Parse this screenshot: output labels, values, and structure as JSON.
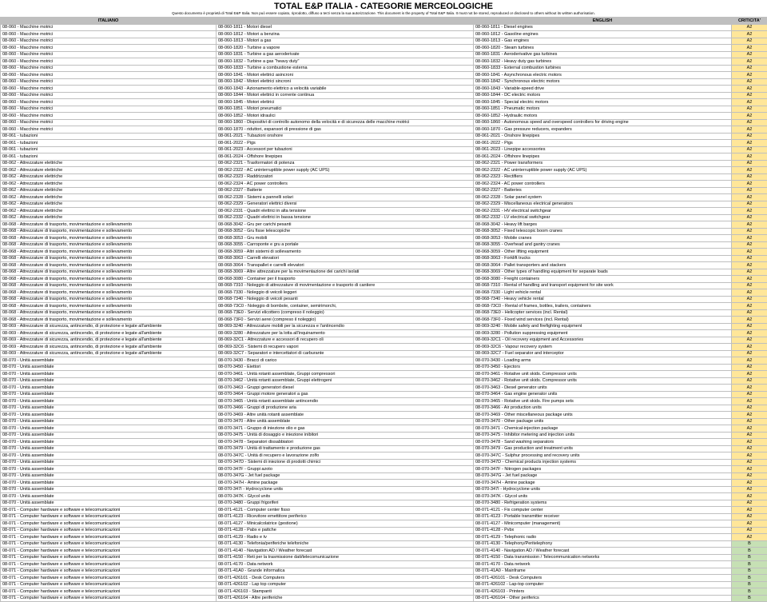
{
  "title": "TOTAL E&P ITALIA - CATEGORIE MERCEOLOGICHE",
  "subtitle": "Questo documento è proprietà di Total E&P Italia. Non può essere copiato, riprodotto, diffuso a terzi senza la sua autorizzazione.  This document is the property of Total E&P Italia. It must not be stored, reproduced or disclosed to others without its written authorisation.",
  "columns": {
    "c1": "ITALIANO",
    "c2": "",
    "c3": "ENGLISH",
    "c4": "CRITICITA'"
  },
  "colors": {
    "a2": "#ffe699",
    "b": "#c6e0b4",
    "header": "#bfbfbf",
    "border": "#bfbfbf"
  },
  "rows": [
    {
      "it": "08-060 - Macchine motrici",
      "code": "08-060-1811 - Motori diesel",
      "en": "08-060-1811 - Diesel engines",
      "crit": "A2"
    },
    {
      "it": "08-060 - Macchine motrici",
      "code": "08-060-1812 - Motori a benzina",
      "en": "08-060-1812 - Gasoline engines",
      "crit": "A2"
    },
    {
      "it": "08-060 - Macchine motrici",
      "code": "08-060-1813 - Motori a gas",
      "en": "08-060-1813 - Gas engines",
      "crit": "A2"
    },
    {
      "it": "08-060 - Macchine motrici",
      "code": "08-060-1820 - Turbine a vapore",
      "en": "08-060-1820 - Steam turbines",
      "crit": "A2"
    },
    {
      "it": "08-060 - Macchine motrici",
      "code": "08-060-1831 - Turbine a gas aeroderivate",
      "en": "08-060-1831 - Aeroderivative gas turbines",
      "crit": "A2"
    },
    {
      "it": "08-060 - Macchine motrici",
      "code": "08-060-1832 - Turbine a gas \"heavy duty\"",
      "en": "08-060-1832 - Heavy duty gas turbines",
      "crit": "A2"
    },
    {
      "it": "08-060 - Macchine motrici",
      "code": "08-060-1833 - Turbine a combustione esterna",
      "en": "08-060-1833 - External combustion turbines",
      "crit": "A2"
    },
    {
      "it": "08-060 - Macchine motrici",
      "code": "08-060-1841 - Motori elettrici asincroni",
      "en": "08-060-1841 - Asynchronous electric motors",
      "crit": "A2"
    },
    {
      "it": "08-060 - Macchine motrici",
      "code": "08-060-1842 - Motori elettrici sincroni",
      "en": "08-060-1842 - Synchronous electric motors",
      "crit": "A2"
    },
    {
      "it": "08-060 - Macchine motrici",
      "code": "08-060-1843 - Azionamento elettrico a velocità variabile",
      "en": "08-060-1843 - Variable-speed drive",
      "crit": "A2"
    },
    {
      "it": "08-060 - Macchine motrici",
      "code": "08-060-1844 - Motori elettrici in corrente continua",
      "en": "08-060-1844 - DC electric motors",
      "crit": "A2"
    },
    {
      "it": "08-060 - Macchine motrici",
      "code": "08-060-1845 - Motori elettrici",
      "en": "08-060-1845 - Special electric motors",
      "crit": "A2"
    },
    {
      "it": "08-060 - Macchine motrici",
      "code": "08-060-1851 - Motori pneumatici",
      "en": "08-060-1851 - Pneumatic motors",
      "crit": "A2"
    },
    {
      "it": "08-060 - Macchine motrici",
      "code": "08-060-1852 - Motori idraulici",
      "en": "08-060-1852 - Hydraulic motors",
      "crit": "A2"
    },
    {
      "it": "08-060 - Macchine motrici",
      "code": "08-060-1860 - Dispositivi di controllo autonomo della velocità e di sicurezza delle macchine motrici",
      "en": "08-060-1860 - Autonomous speed and overspeed controllers for driving engine",
      "crit": "A2"
    },
    {
      "it": "08-060 - Macchine motrici",
      "code": "08-060-1870 - riduttori, espansori di pressione di gas",
      "en": "08-060-1870 - Gas pressure reducers, expanders",
      "crit": "A2"
    },
    {
      "it": "08-061 - tubazioni",
      "code": "08-061-2021 - Tubazioni onshore",
      "en": "08-061-2021 - Onshore linepipes",
      "crit": "A2"
    },
    {
      "it": "08-061 - tubazioni",
      "code": "08-061-2022 - Pigs",
      "en": "08-061-2022 - Pigs",
      "crit": "A2"
    },
    {
      "it": "08-061 - tubazioni",
      "code": "08-061-2023 - Accessori per tubazioni",
      "en": "08-061-2023 - Linepipe accessories",
      "crit": "A2"
    },
    {
      "it": "08-061 - tubazioni",
      "code": "08-061-2024 - Offshore linepipes",
      "en": "08-061-2024 - Offshore linepipes",
      "crit": "A2"
    },
    {
      "it": "08-062 - Attrezzature elettriche",
      "code": "08-062-2321 - Trasformatori di potenza",
      "en": "08-062-2321 - Power transformers",
      "crit": "A2"
    },
    {
      "it": "08-062 - Attrezzature elettriche",
      "code": "08-062-2322 - AC uninterruptible power supply (AC UPS)",
      "en": "08-062-2322 - AC uninterruptible power supply (AC UPS)",
      "crit": "A2"
    },
    {
      "it": "08-062 - Attrezzature elettriche",
      "code": "08-062-2323 - Raddrizzatori",
      "en": "08-062-2323 - Rectifiers",
      "crit": "A2"
    },
    {
      "it": "08-062 - Attrezzature elettriche",
      "code": "08-062-2324 - AC power controllers",
      "en": "08-062-2324 - AC power controllers",
      "crit": "A2"
    },
    {
      "it": "08-062 - Attrezzature elettriche",
      "code": "08-062-2327 - Batterie",
      "en": "08-062-2327 - Batteries",
      "crit": "A2"
    },
    {
      "it": "08-062 - Attrezzature elettriche",
      "code": "08-062-2328 - Sistemi a pannelli solari",
      "en": "08-062-2328 - Solar panel system",
      "crit": "A2"
    },
    {
      "it": "08-062 - Attrezzature elettriche",
      "code": "08-062-2329 - Generatori elettrici diversi",
      "en": "08-062-2329 - Miscellaneous electrical generators",
      "crit": "A2"
    },
    {
      "it": "08-062 - Attrezzature elettriche",
      "code": "08-062-2331 - Quadri elettrici in alta tensione",
      "en": "08-062-2331 - HV electrical switchgear",
      "crit": "A2"
    },
    {
      "it": "08-062 - Attrezzature elettriche",
      "code": "08-062-2332 - Quadri elettrici in bassa tensione",
      "en": "08-062-2332 - LV electrical switchgear",
      "crit": "A2"
    },
    {
      "it": "08-068 - Attrezzature di trasporto, movimentazione e sollevamento",
      "code": "08-068-3042 - Gru per carichi pesanti",
      "en": "08-068-3042 - Heavy lift barges",
      "crit": "A2"
    },
    {
      "it": "08-068 - Attrezzature di trasporto, movimentazione e sollevamento",
      "code": "08-068-3052 - Gru fisse telescopiche",
      "en": "08-068-3052 - Fixed telescopic boom cranes",
      "crit": "A2"
    },
    {
      "it": "08-068 - Attrezzature di trasporto, movimentazione e sollevamento",
      "code": "08-068-3053 - Gru mobili",
      "en": "08-068-3053 - Mobile cranes",
      "crit": "A2"
    },
    {
      "it": "08-068 - Attrezzature di trasporto, movimentazione e sollevamento",
      "code": "08-068-3055 - Carroponte e gru a portale",
      "en": "08-068-3055 - Overhead and gantry cranes",
      "crit": "A2"
    },
    {
      "it": "08-068 - Attrezzature di trasporto, movimentazione e sollevamento",
      "code": "08-068-3059 - Altri sistemi di sollevamento",
      "en": "08-068-3059 - Other lifting equipment",
      "crit": "A2"
    },
    {
      "it": "08-068 - Attrezzature di trasporto, movimentazione e sollevamento",
      "code": "08-068-3063 - Carrelli elevatori",
      "en": "08-068-3063 - Forklift trucks",
      "crit": "A2"
    },
    {
      "it": "08-068 - Attrezzature di trasporto, movimentazione e sollevamento",
      "code": "08-068-3064 - Transpallet e carrelli elevatori",
      "en": "08-068-3064 - Pallet transporters and stackers",
      "crit": "A2"
    },
    {
      "it": "08-068 - Attrezzature di trasporto, movimentazione e sollevamento",
      "code": "08-068-3069 - Altre attrezzature per la movimentazione dei carichi isolati",
      "en": "08-068-3069 - Other types of handling equipment for separate loads",
      "crit": "A2"
    },
    {
      "it": "08-068 - Attrezzature di trasporto, movimentazione e sollevamento",
      "code": "08-068-3080 - Container per il trasporto",
      "en": "08-068-3080 - Freight containers",
      "crit": "A2"
    },
    {
      "it": "08-068 - Attrezzature di trasporto, movimentazione e sollevamento",
      "code": "08-068-7310 - Noleggio di attrezzature di movimentazione e trasporto di cantiere",
      "en": "08-068-7310 - Rental of handling and transport equipment for site work",
      "crit": "A2"
    },
    {
      "it": "08-068 - Attrezzature di trasporto, movimentazione e sollevamento",
      "code": "08-068-7330 - Noleggio di veicoli leggeri",
      "en": "08-068-7330 - Light vehicle rental",
      "crit": "A2"
    },
    {
      "it": "08-068 - Attrezzature di trasporto, movimentazione e sollevamento",
      "code": "08-068-7340 - Noleggio di veicoli pesanti",
      "en": "08-068-7340 - Heavy vehicle rental",
      "crit": "A2"
    },
    {
      "it": "08-068 - Attrezzature di trasporto, movimentazione e sollevamento",
      "code": "08-068-73C0 - Noleggio di bombole, container, semirimorchi,",
      "en": "08-068-73C0 - Rental of frames, bottles, trailers, containers",
      "crit": "A2"
    },
    {
      "it": "08-068 - Attrezzature di trasporto, movimentazione e sollevamento",
      "code": "08-068-73E0 - Servizi elicottero (compreso il noleggio)",
      "en": "08-068-73E0 - Helicopter services (incl. Rental)",
      "crit": "A2"
    },
    {
      "it": "08-068 - Attrezzature di trasporto, movimentazione e sollevamento",
      "code": "08-068-73F0 - Servizi aerei (compreso il noleggio)",
      "en": "08-068-73F0 - Fixed wind services (incl. Rental)",
      "crit": "A2"
    },
    {
      "it": "08-069 - Attrezzature di sicurezza, antincendio, di protezione e legate all'ambiente",
      "code": "08-069-3240 - Attrezzature mobili per la sicurezza e l'antincendio",
      "en": "08-069-3240 - Mobile safety and firefighting equipment",
      "crit": "A2"
    },
    {
      "it": "08-069 - Attrezzature di sicurezza, antincendio, di protezione e legate all'ambiente",
      "code": "08-069-3280 - Attrezzature per la lotta all'inquinamento",
      "en": "08-069-3280 - Pollution suppressing equipment",
      "crit": "A2"
    },
    {
      "it": "08-069 - Attrezzature di sicurezza, antincendio, di protezione e legate all'ambiente",
      "code": "08-069-32C1 - Attrezzature e accessori di recupero oli",
      "en": "08-069-32C1 - Oil recovery equipment and Accessories",
      "crit": "A2"
    },
    {
      "it": "08-069 - Attrezzature di sicurezza, antincendio, di protezione e legate all'ambiente",
      "code": "08-069-32C6 - Sistemi di recupero vapori",
      "en": "08-069-32C6 - Vapour recovery system",
      "crit": "A2"
    },
    {
      "it": "08-069 - Attrezzature di sicurezza, antincendio, di protezione e legate all'ambiente",
      "code": "08-069-32C7 - Separatori e intercettatori di carburante",
      "en": "08-069-32C7 - Fuel separator and interceptor",
      "crit": "A2"
    },
    {
      "it": "08-070 - Unità assemblate",
      "code": "08-070-3430 - Bracci di carico",
      "en": "08-070-3430 - Loading arms",
      "crit": "A2"
    },
    {
      "it": "08-070 - Unità assemblate",
      "code": "08-070-3450 - Eiettori",
      "en": "08-070-3450 - Ejectors",
      "crit": "A2"
    },
    {
      "it": "08-070 - Unità assemblate",
      "code": "08-070-3461 - Unità rotanti assemblate, Gruppi compressori",
      "en": "08-070-3461 - Rotative unit skids. Compressor units",
      "crit": "A2"
    },
    {
      "it": "08-070 - Unità assemblate",
      "code": "08-070-3462 - Unità rotanti assemblate, Gruppi elettrogeni",
      "en": "08-070-3462 - Rotative unit skids. Compressor units",
      "crit": "A2"
    },
    {
      "it": "08-070 - Unità assemblate",
      "code": "08-070-3463 - Gruppi generatori diesel",
      "en": "08-070-3463 - Diesel generator units",
      "crit": "A2"
    },
    {
      "it": "08-070 - Unità assemblate",
      "code": "08-070-3464 - Gruppi motore generatori a gas",
      "en": "08-070-3464 - Gas engine generator units",
      "crit": "A2"
    },
    {
      "it": "08-070 - Unità assemblate",
      "code": "08-070-3465 - Unità rotanti assemblate antincendio",
      "en": "08-070-3465 - Rotative unit skids. Fire pumps sets",
      "crit": "A2"
    },
    {
      "it": "08-070 - Unità assemblate",
      "code": "08-070-3466 - Gruppi di produzione aria",
      "en": "08-070-3466 - Air production units",
      "crit": "A2"
    },
    {
      "it": "08-070 - Unità assemblate",
      "code": "08-070-3469 - Altre unità rotanti assemblate",
      "en": "08-070-3469 - Other miscellaneous package units",
      "crit": "A2"
    },
    {
      "it": "08-070 - Unità assemblate",
      "code": "08-070-3470 - Altre unità assemblate",
      "en": "08-070-3470 - Other package units",
      "crit": "A2"
    },
    {
      "it": "08-070 - Unità assemblate",
      "code": "08-070-3471 - Gruppo di iniezione olio e gas",
      "en": "08-070-3471 - Chemical-injection package",
      "crit": "A2"
    },
    {
      "it": "08-070 - Unità assemblate",
      "code": "08-070-3475 - Unità di dosaggio e iniezione inibitori",
      "en": "08-070-3475 - Inhibitor metering and injection units",
      "crit": "A2"
    },
    {
      "it": "08-070 - Unità assemblate",
      "code": "08-070-3478 - Separatori dissabbiatori",
      "en": "08-070-3478 - Sand washing separators",
      "crit": "A2"
    },
    {
      "it": "08-070 - Unità assemblate",
      "code": "08-070-3479 - Unità di trattamento e produzione gas",
      "en": "08-070-3479 - Gas production and treatment units",
      "crit": "A2"
    },
    {
      "it": "08-070 - Unità assemblate",
      "code": "08-070-347C - Unità di recupero e lavorazione zolfo",
      "en": "08-070-347C - Sulphur processing and recovery units",
      "crit": "A2"
    },
    {
      "it": "08-070 - Unità assemblate",
      "code": "08-070-347D - Sistemi di iniezione di prodotti chimici",
      "en": "08-070-347D - Chemical products injection systems",
      "crit": "A2"
    },
    {
      "it": "08-070 - Unità assemblate",
      "code": "08-070-347F - Gruppi azoto",
      "en": "08-070-347F - Nitrogen packages",
      "crit": "A2"
    },
    {
      "it": "08-070 - Unità assemblate",
      "code": "08-070-347G - Jet fuel package",
      "en": "08-070-347G - Jet fuel package",
      "crit": "A2"
    },
    {
      "it": "08-070 - Unità assemblate",
      "code": "08-070-347H - Amine package",
      "en": "08-070-347H - Amine package",
      "crit": "A2"
    },
    {
      "it": "08-070 - Unità assemblate",
      "code": "08-070-347I - Hydrocyclone units",
      "en": "08-070-347I - Hydrocyclone units",
      "crit": "A2"
    },
    {
      "it": "08-070 - Unità assemblate",
      "code": "08-070-347K - Glycol units",
      "en": "08-070-347K - Glycol units",
      "crit": "A2"
    },
    {
      "it": "08-070 - Unità assemblate",
      "code": "08-070-3480 - Gruppi frigoriferi",
      "en": "08-070-3480 - Refrigeration systems",
      "crit": "A2"
    },
    {
      "it": "08-071 - Computer hardware e software e telecomunicazioni",
      "code": "08-071-4121 - Computer center fisso",
      "en": "08-071-4121 - Fix computer center",
      "crit": "A2"
    },
    {
      "it": "08-071 - Computer hardware e software e telecomunicazioni",
      "code": "08-071-4123 - Ricevitore emettitore periferico",
      "en": "08-071-4123 - Portable transmitter receiver",
      "crit": "A2"
    },
    {
      "it": "08-071 - Computer hardware e software e telecomunicazioni",
      "code": "08-071-4127 - Minicalcolatrice (gestione)",
      "en": "08-071-4127 - Minicomputer (management)",
      "crit": "A2"
    },
    {
      "it": "08-071 - Computer hardware e software e telecomunicazioni",
      "code": "08-071-4128 - Pabx e pattche",
      "en": "08-071-4128 - Pvbx",
      "crit": "A2"
    },
    {
      "it": "08-071 - Computer hardware e software e telecomunicazioni",
      "code": "08-071-4129 - Radio e tv",
      "en": "08-071-4129 - Telephonic radio",
      "crit": "A2"
    },
    {
      "it": "08-071 - Computer hardware e software e telecomunicazioni",
      "code": "08-071-4130 - Telefonia/periferiche telefoniche",
      "en": "08-071-4130 - Telephony/Peritelephony",
      "crit": "B"
    },
    {
      "it": "08-071 - Computer hardware e software e telecomunicazioni",
      "code": "08-071-4140 - Navigation AD / Weather forecast",
      "en": "08-071-4140 - Navigation AD / Weather forecast",
      "crit": "B"
    },
    {
      "it": "08-071 - Computer hardware e software e telecomunicazioni",
      "code": "08-071-4150 - Reti per la trasmissione dati/telecomunicazione",
      "en": "08-071-4150 - Data transmission / Telecommunication networks",
      "crit": "B"
    },
    {
      "it": "08-071 - Computer hardware e software e telecomunicazioni",
      "code": "08-071-4170 - Data network",
      "en": "08-071-4170 - Data network",
      "crit": "B"
    },
    {
      "it": "08-071 - Computer hardware e software e telecomunicazioni",
      "code": "08-071-41A0 - Grande informatica",
      "en": "08-071-41A0 - Mainframe",
      "crit": "B"
    },
    {
      "it": "08-071 - Computer hardware e software e telecomunicazioni",
      "code": "08-071-426101 - Desk Computers",
      "en": "08-071-426101 - Desk Computers",
      "crit": "B"
    },
    {
      "it": "08-071 - Computer hardware e software e telecomunicazioni",
      "code": "08-071-426102 - Lap top computer",
      "en": "08-071-426102 - Lap-top computer",
      "crit": "B"
    },
    {
      "it": "08-071 - Computer hardware e software e telecomunicazioni",
      "code": "08-071-426103 - Stampanti",
      "en": "08-071-426103 - Printers",
      "crit": "B"
    },
    {
      "it": "08-071 - Computer hardware e software e telecomunicazioni",
      "code": "08-071-426104 - Altre periferiche",
      "en": "08-071-426104 - Other periferics",
      "crit": "B"
    }
  ]
}
